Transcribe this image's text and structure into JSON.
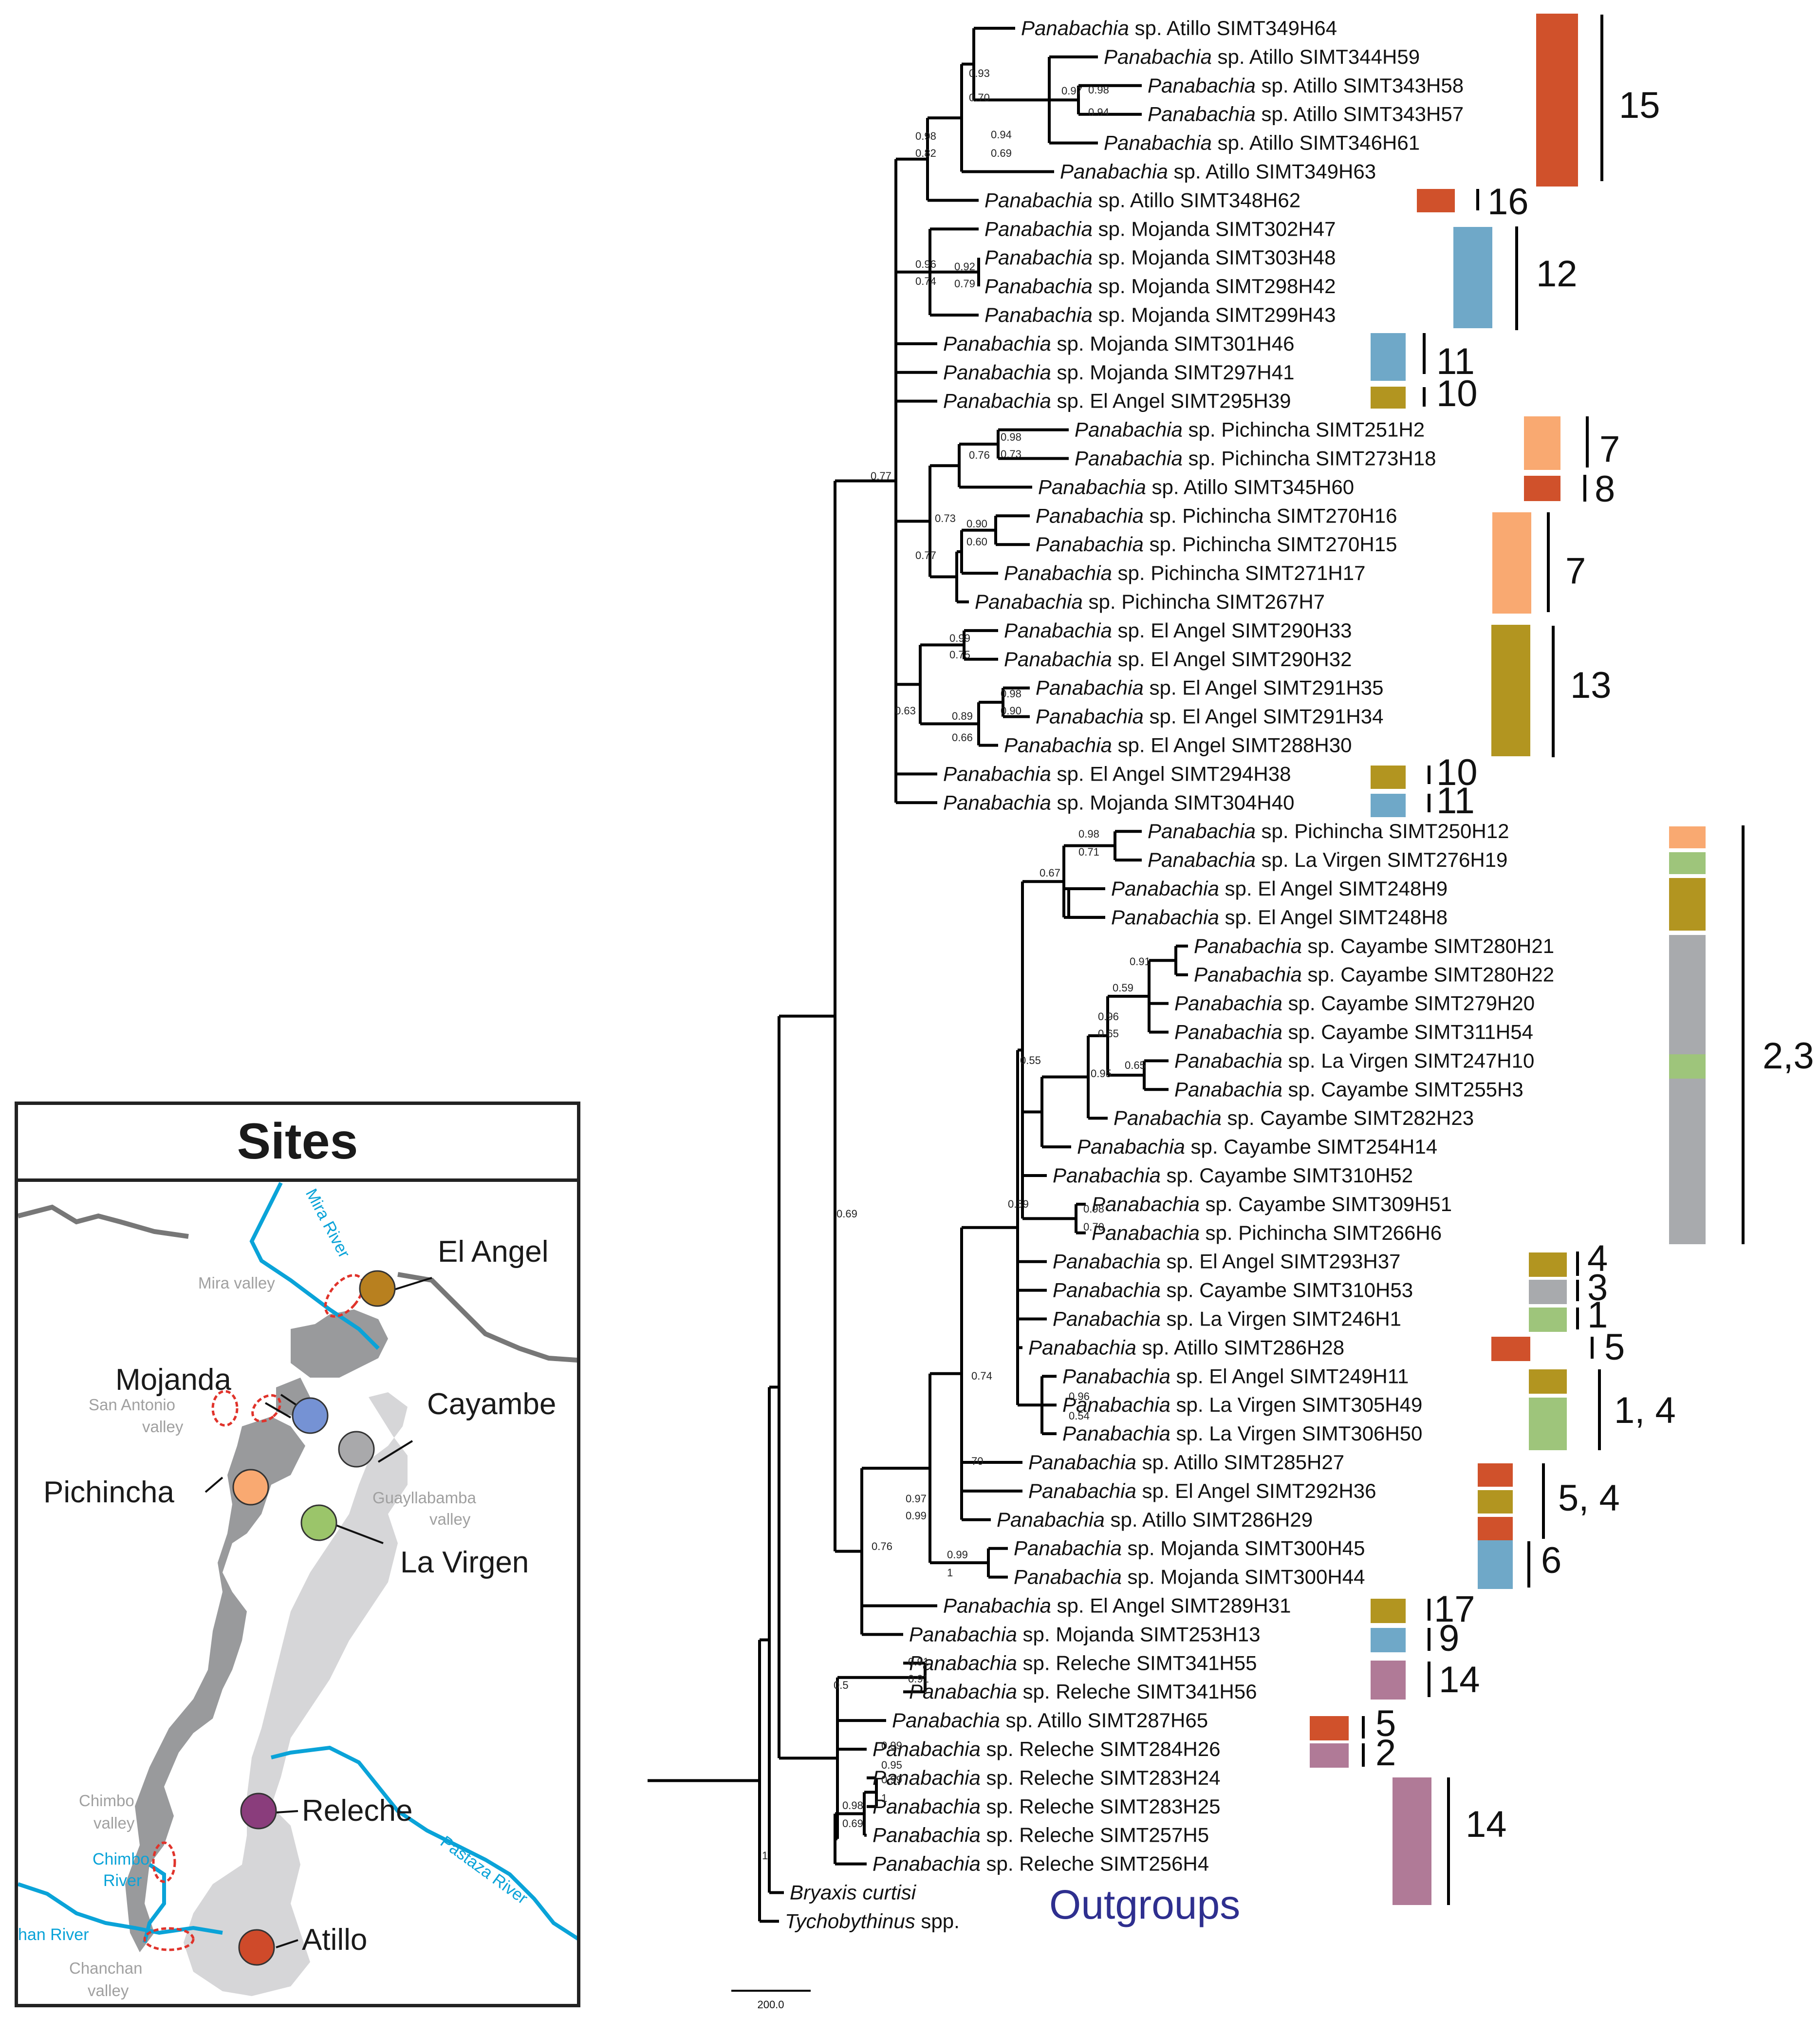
{
  "tree": {
    "genus": "Panabachia",
    "tips": [
      {
        "label": "Panabachia sp. Atillo SIMT349H64"
      },
      {
        "label": "Panabachia sp. Atillo SIMT344H59"
      },
      {
        "label": "Panabachia sp. Atillo SIMT343H58"
      },
      {
        "label": "Panabachia sp. Atillo SIMT343H57"
      },
      {
        "label": "Panabachia sp. Atillo SIMT346H61"
      },
      {
        "label": "Panabachia sp. Atillo SIMT349H63"
      },
      {
        "label": "Panabachia sp. Atillo SIMT348H62"
      },
      {
        "label": "Panabachia sp. Mojanda SIMT302H47"
      },
      {
        "label": "Panabachia sp. Mojanda SIMT303H48"
      },
      {
        "label": "Panabachia sp. Mojanda SIMT298H42"
      },
      {
        "label": "Panabachia sp. Mojanda SIMT299H43"
      },
      {
        "label": "Panabachia sp. Mojanda SIMT301H46"
      },
      {
        "label": "Panabachia sp. Mojanda SIMT297H41"
      },
      {
        "label": "Panabachia sp. El Angel SIMT295H39"
      },
      {
        "label": "Panabachia sp. Pichincha SIMT251H2"
      },
      {
        "label": "Panabachia sp. Pichincha SIMT273H18"
      },
      {
        "label": "Panabachia sp. Atillo SIMT345H60"
      },
      {
        "label": "Panabachia sp. Pichincha SIMT270H16"
      },
      {
        "label": "Panabachia sp. Pichincha SIMT270H15"
      },
      {
        "label": "Panabachia sp. Pichincha SIMT271H17"
      },
      {
        "label": "Panabachia sp. Pichincha SIMT267H7"
      },
      {
        "label": "Panabachia sp. El Angel SIMT290H33"
      },
      {
        "label": "Panabachia sp. El Angel SIMT290H32"
      },
      {
        "label": "Panabachia sp. El Angel SIMT291H35"
      },
      {
        "label": "Panabachia sp. El Angel SIMT291H34"
      },
      {
        "label": "Panabachia sp. El Angel SIMT288H30"
      },
      {
        "label": "Panabachia sp. El Angel SIMT294H38"
      },
      {
        "label": "Panabachia sp. Mojanda SIMT304H40"
      },
      {
        "label": "Panabachia sp. Pichincha SIMT250H12"
      },
      {
        "label": "Panabachia sp. La Virgen SIMT276H19"
      },
      {
        "label": "Panabachia sp. El Angel SIMT248H9"
      },
      {
        "label": "Panabachia sp. El Angel SIMT248H8"
      },
      {
        "label": "Panabachia sp. Cayambe SIMT280H21"
      },
      {
        "label": "Panabachia sp. Cayambe SIMT280H22"
      },
      {
        "label": "Panabachia sp. Cayambe SIMT279H20"
      },
      {
        "label": "Panabachia sp. Cayambe SIMT311H54"
      },
      {
        "label": "Panabachia sp. La Virgen SIMT247H10"
      },
      {
        "label": "Panabachia sp. Cayambe SIMT255H3"
      },
      {
        "label": "Panabachia sp. Cayambe SIMT282H23"
      },
      {
        "label": "Panabachia sp. Cayambe SIMT254H14"
      },
      {
        "label": "Panabachia sp. Cayambe SIMT310H52"
      },
      {
        "label": "Panabachia sp. Cayambe SIMT309H51"
      },
      {
        "label": "Panabachia sp. Pichincha SIMT266H6"
      },
      {
        "label": "Panabachia sp. El Angel SIMT293H37"
      },
      {
        "label": "Panabachia sp. Cayambe SIMT310H53"
      },
      {
        "label": "Panabachia sp. La Virgen SIMT246H1"
      },
      {
        "label": "Panabachia sp. Atillo SIMT286H28"
      },
      {
        "label": "Panabachia sp. El Angel SIMT249H11"
      },
      {
        "label": "Panabachia sp. La Virgen SIMT305H49"
      },
      {
        "label": "Panabachia sp. La Virgen SIMT306H50"
      },
      {
        "label": "Panabachia sp. Atillo SIMT285H27"
      },
      {
        "label": "Panabachia sp. El Angel SIMT292H36"
      },
      {
        "label": "Panabachia sp. Atillo SIMT286H29"
      },
      {
        "label": "Panabachia sp. Mojanda SIMT300H45"
      },
      {
        "label": "Panabachia sp. Mojanda SIMT300H44"
      },
      {
        "label": "Panabachia sp. El Angel SIMT289H31"
      },
      {
        "label": "Panabachia sp. Mojanda SIMT253H13"
      },
      {
        "label": "Panabachia sp. Releche SIMT341H55"
      },
      {
        "label": "Panabachia sp. Releche SIMT341H56"
      },
      {
        "label": "Panabachia sp. Atillo SIMT287H65"
      },
      {
        "label": "Panabachia sp. Releche SIMT284H26"
      },
      {
        "label": "Panabachia sp. Releche SIMT283H24"
      },
      {
        "label": "Panabachia sp. Releche SIMT283H25"
      },
      {
        "label": "Panabachia sp. Releche SIMT257H5"
      },
      {
        "label": "Panabachia sp. Releche SIMT256H4"
      },
      {
        "label": "Bryaxis curtisi"
      },
      {
        "label": "Tychobythinus spp."
      }
    ],
    "support_values": [
      "0.93",
      "0.70",
      "0.97",
      "0.98",
      "0.94",
      "0.94",
      "0.69",
      "0.98",
      "0.82",
      "0.96",
      "0.74",
      "0.92",
      "0.79",
      "0.77",
      "0.98",
      "0.73",
      "0.76",
      "0.90",
      "0.60",
      "0.73",
      "0.77",
      "0.99",
      "0.75",
      "0.98",
      "0.90",
      "0.89",
      "0.66",
      "0.63",
      "0.98",
      "0.71",
      "0.67",
      "0.91",
      "0.59",
      "0.96",
      "0.65",
      "0.65",
      "0.95",
      "0.55",
      "0.98",
      "0.70",
      "0.59",
      "0.69",
      "0.96",
      "0.54",
      "0.74",
      "70",
      "0.97",
      "0.99",
      "0.99",
      "1",
      "0.76",
      "0.91",
      "0.91",
      "0.5",
      "0.99",
      "1",
      "0.99",
      "0.95",
      "0.98",
      "0.69",
      "1"
    ],
    "clade_labels": [
      "15",
      "16",
      "12",
      "11",
      "10",
      "7",
      "8",
      "7",
      "13",
      "10",
      "11",
      "2,3",
      "4",
      "3",
      "1",
      "5",
      "1, 4",
      "5, 4",
      "6",
      "17",
      "9",
      "14",
      "5",
      "2",
      "14"
    ],
    "outgroups_label": "Outgroups",
    "scale_label": "200.0"
  },
  "colors": {
    "Atillo": "#d0512b",
    "Mojanda": "#6fa8c8",
    "El Angel": "#b29520",
    "Pichincha": "#f9a971",
    "La Virgen": "#9ec57b",
    "Cayambe": "#a8aaad",
    "Releche": "#b07a97",
    "outgroups_text": "#2e2f8f",
    "river": "#0aa3d8",
    "valley_marker": "#e0332b"
  },
  "map": {
    "title": "Sites",
    "sites": [
      {
        "name": "El Angel",
        "color": "#b8801f"
      },
      {
        "name": "Mojanda",
        "color": "#7592d4"
      },
      {
        "name": "Cayambe",
        "color": "#a9a9ab"
      },
      {
        "name": "Pichincha",
        "color": "#f9a971"
      },
      {
        "name": "La Virgen",
        "color": "#9bc56a"
      },
      {
        "name": "Releche",
        "color": "#8a3d7c"
      },
      {
        "name": "Atillo",
        "color": "#cf4a2a"
      }
    ],
    "valleys": [
      "Mira valley",
      "San Antonio",
      "valley",
      "Guayllabamba",
      "valley",
      "Chimbo",
      "valley",
      "Chanchan",
      "valley"
    ],
    "rivers": [
      "Mira River",
      "Chimbo",
      "River",
      "Pastaza River",
      "han River"
    ]
  }
}
